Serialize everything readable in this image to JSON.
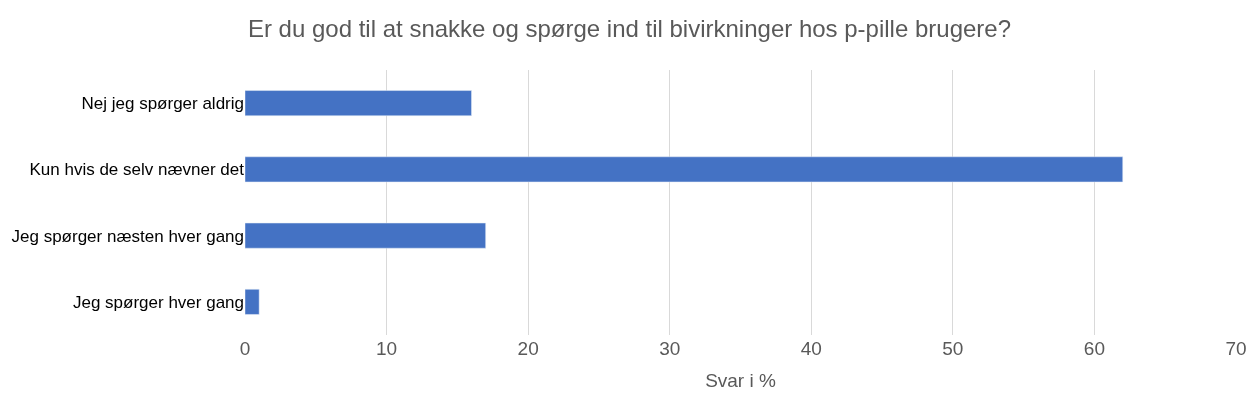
{
  "chart_data": {
    "type": "bar",
    "orientation": "horizontal",
    "title": "Er du god til at snakke og spørge ind til bivirkninger hos p-pille brugere?",
    "xlabel": "Svar i %",
    "categories": [
      "Nej jeg spørger aldrig",
      "Kun hvis de selv nævner det",
      "Jeg spørger næsten hver gang",
      "Jeg spørger hver gang"
    ],
    "values": [
      16,
      62,
      17,
      1
    ],
    "color": "#4472c4",
    "xlim": [
      0,
      70
    ],
    "xticks": [
      0,
      10,
      20,
      30,
      40,
      50,
      60,
      70
    ],
    "grid": "x"
  }
}
